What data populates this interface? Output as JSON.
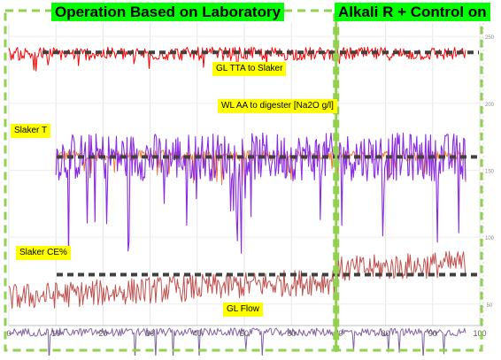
{
  "section_labels": {
    "left": "Operation Based on Laboratory",
    "right": "Alkali R + Control on"
  },
  "colors": {
    "section_label_bg": "#00ff00",
    "series_label_bg": "#ffff00",
    "section_border": "#92d050",
    "setpoint": "#404040",
    "gl_tta": "#ff0000",
    "wl_aa": "#8a2be2",
    "slaker_t": "#ed7d31",
    "slaker_ce": "#c0504d",
    "gl_flow": "#8064a2"
  },
  "chart_data": {
    "type": "line",
    "xlim": [
      0,
      100
    ],
    "x_ticks": [
      "0",
      "10",
      "20",
      "30",
      "40",
      "50",
      "60",
      "70",
      "80",
      "90",
      "100"
    ],
    "y2_ticks": [
      "250",
      "200",
      "150",
      "100",
      "50"
    ],
    "grid": true,
    "mode_change_x": 69.5,
    "series": [
      {
        "name": "GL TTA to Slaker",
        "x_range": [
          0,
          97
        ],
        "level": 237,
        "noise": 5,
        "setpoint": 238
      },
      {
        "name": "WL AA to digester [Na2O g/l]",
        "x_range": [
          10,
          97
        ],
        "level": 160,
        "noise": 18,
        "setpoint": 160
      },
      {
        "name": "Slaker T",
        "x_range": [
          10,
          97
        ],
        "level": 161,
        "noise": 4,
        "setpoint": 160
      },
      {
        "name": "Slaker CE%",
        "x_range": [
          0,
          97
        ],
        "level": 55,
        "noise": 10,
        "setpoint": 72
      },
      {
        "name": "GL Flow",
        "x_range": [
          0,
          97
        ],
        "level": 29,
        "noise": 3
      }
    ]
  }
}
